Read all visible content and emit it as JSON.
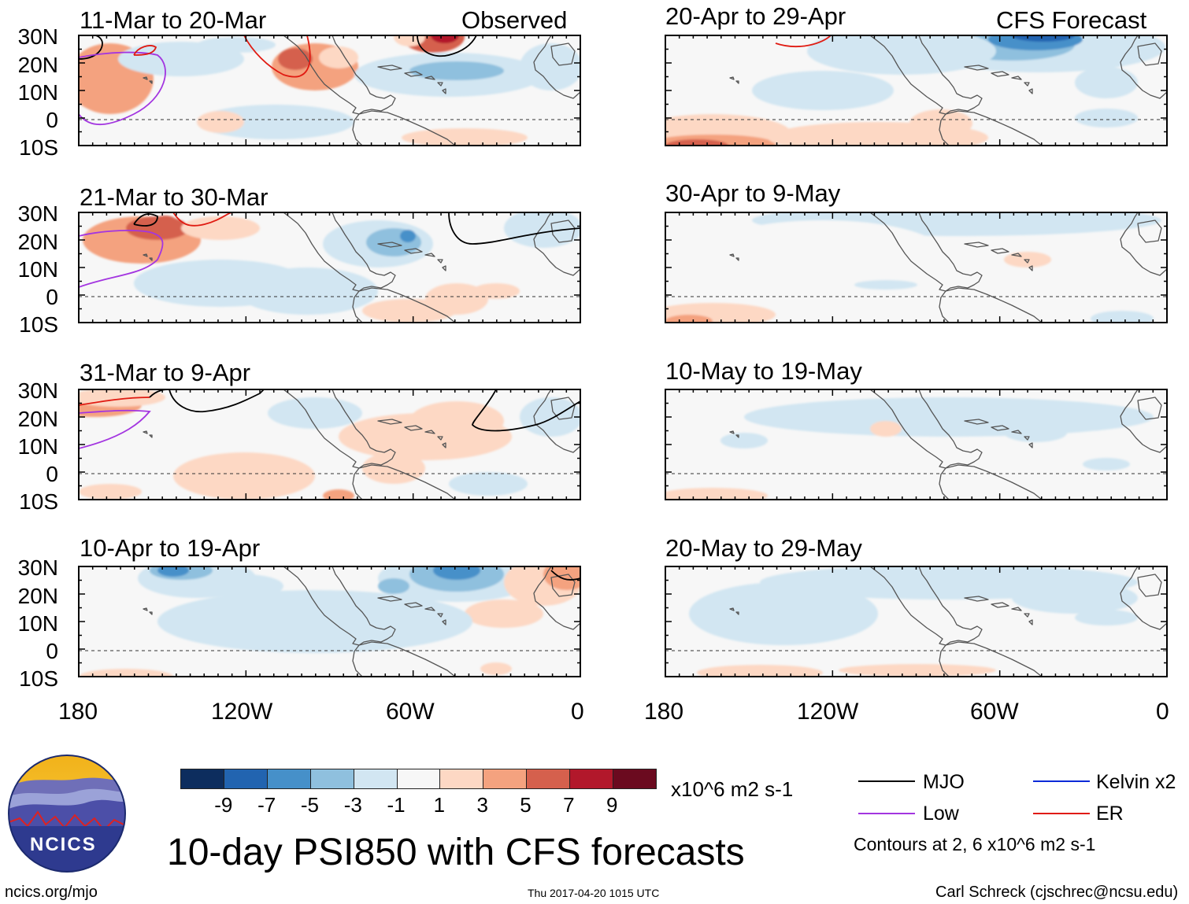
{
  "panels": [
    {
      "id": "p1",
      "title": "11-Mar to 20-Mar",
      "tag": "Observed"
    },
    {
      "id": "p2",
      "title": "21-Mar to 30-Mar",
      "tag": ""
    },
    {
      "id": "p3",
      "title": "31-Mar to 9-Apr",
      "tag": ""
    },
    {
      "id": "p4",
      "title": "10-Apr to 19-Apr",
      "tag": ""
    },
    {
      "id": "p5",
      "title": "20-Apr to 29-Apr",
      "tag": "CFS Forecast"
    },
    {
      "id": "p6",
      "title": "30-Apr to 9-May",
      "tag": ""
    },
    {
      "id": "p7",
      "title": "10-May to 19-May",
      "tag": ""
    },
    {
      "id": "p8",
      "title": "20-May to 29-May",
      "tag": ""
    }
  ],
  "lat_labels": [
    "30N",
    "20N",
    "10N",
    "0",
    "10S"
  ],
  "lon_labels": [
    "180",
    "120W",
    "60W",
    "0"
  ],
  "colorbar": {
    "colors": [
      "#0d2d5e",
      "#2264b0",
      "#4690c9",
      "#8fc0de",
      "#d2e6f2",
      "#f7f7f7",
      "#fdd8c4",
      "#f4a27f",
      "#d5604d",
      "#b2182b",
      "#6b0a1f"
    ],
    "ticks": [
      "-9",
      "-7",
      "-5",
      "-3",
      "-1",
      "1",
      "3",
      "5",
      "7",
      "9"
    ],
    "units": "x10^6 m2 s-1"
  },
  "legend": {
    "items": [
      {
        "label": "MJO",
        "color": "#000000"
      },
      {
        "label": "Kelvin x2",
        "color": "#0a2ad8"
      },
      {
        "label": "Low",
        "color": "#a335e0"
      },
      {
        "label": "ER",
        "color": "#e01b12"
      }
    ],
    "contours_note": "Contours at 2, 6 x10^6 m2 s-1"
  },
  "logo_text": "NCICS",
  "main_title": "10-day PSI850 with CFS forecasts",
  "footer": {
    "left": "ncics.org/mjo",
    "center": "Thu 2017-04-20 1015 UTC",
    "right": "Carl Schreck (cjschrec@ncsu.edu)"
  }
}
